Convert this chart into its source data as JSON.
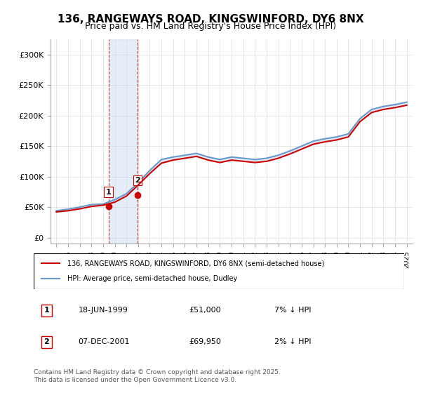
{
  "title_line1": "136, RANGEWAYS ROAD, KINGSWINFORD, DY6 8NX",
  "title_line2": "Price paid vs. HM Land Registry's House Price Index (HPI)",
  "ylabel": "",
  "xlabel": "",
  "background_color": "#ffffff",
  "plot_bg_color": "#ffffff",
  "grid_color": "#dddddd",
  "sale1_date": 1999.46,
  "sale1_price": 51000,
  "sale1_label": "1",
  "sale1_date_str": "18-JUN-1999",
  "sale1_price_str": "£51,000",
  "sale1_hpi_str": "7% ↓ HPI",
  "sale2_date": 2001.93,
  "sale2_price": 69950,
  "sale2_label": "2",
  "sale2_date_str": "07-DEC-2001",
  "sale2_price_str": "£69,950",
  "sale2_hpi_str": "2% ↓ HPI",
  "legend_line1": "136, RANGEWAYS ROAD, KINGSWINFORD, DY6 8NX (semi-detached house)",
  "legend_line2": "HPI: Average price, semi-detached house, Dudley",
  "footer": "Contains HM Land Registry data © Crown copyright and database right 2025.\nThis data is licensed under the Open Government Licence v3.0.",
  "line_color_red": "#cc0000",
  "line_color_blue": "#6699cc",
  "marker_color_red": "#cc0000",
  "shade_color": "#ccddee",
  "vline_color": "#cc0000",
  "ylim_max": 325000,
  "ylim_min": -10000,
  "xlim_min": 1994.5,
  "xlim_max": 2025.5,
  "hpi_years": [
    1995,
    1996,
    1997,
    1998,
    1999,
    2000,
    2001,
    2002,
    2003,
    2004,
    2005,
    2006,
    2007,
    2008,
    2009,
    2010,
    2011,
    2012,
    2013,
    2014,
    2015,
    2016,
    2017,
    2018,
    2019,
    2020,
    2021,
    2022,
    2023,
    2024,
    2025
  ],
  "hpi_values": [
    44000,
    46500,
    50000,
    54000,
    55000,
    62000,
    72000,
    90000,
    110000,
    128000,
    132000,
    135000,
    138000,
    132000,
    128000,
    132000,
    130000,
    128000,
    130000,
    135000,
    142000,
    150000,
    158000,
    162000,
    165000,
    170000,
    195000,
    210000,
    215000,
    218000,
    222000
  ],
  "price_years": [
    1995,
    1996,
    1997,
    1998,
    1999,
    2000,
    2001,
    2002,
    2003,
    2004,
    2005,
    2006,
    2007,
    2008,
    2009,
    2010,
    2011,
    2012,
    2013,
    2014,
    2015,
    2016,
    2017,
    2018,
    2019,
    2020,
    2021,
    2022,
    2023,
    2024,
    2025
  ],
  "price_values": [
    42000,
    44000,
    47000,
    51000,
    53000,
    58000,
    68000,
    86000,
    105000,
    122000,
    127000,
    130000,
    133000,
    127000,
    123000,
    127000,
    125000,
    123000,
    125000,
    130000,
    137000,
    145000,
    153000,
    157000,
    160000,
    165000,
    190000,
    205000,
    210000,
    213000,
    217000
  ]
}
